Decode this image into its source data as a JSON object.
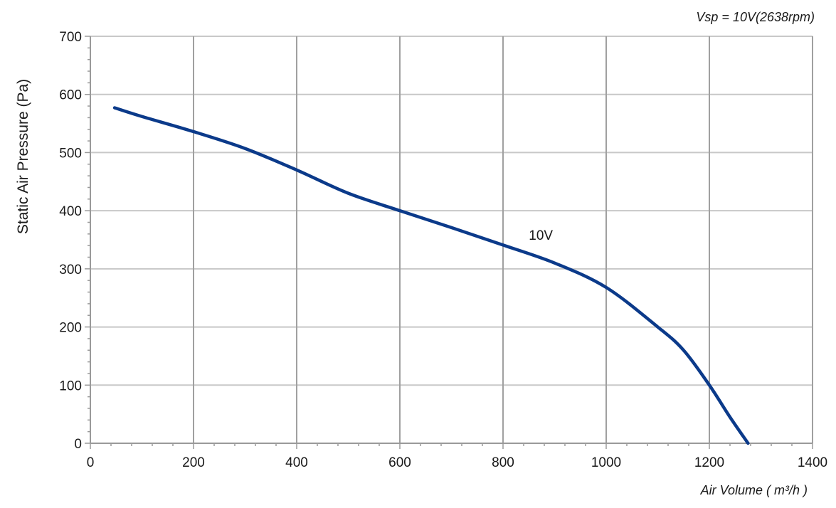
{
  "chart_data": {
    "type": "line",
    "title": "Vsp = 10V(2638rpm)",
    "xlabel": "Air Volume ( m³/h )",
    "ylabel": "Static Air Pressure  (Pa)",
    "xlim": [
      0,
      1400
    ],
    "ylim": [
      0,
      700
    ],
    "x_ticks": [
      0,
      200,
      400,
      600,
      800,
      1000,
      1200,
      1400
    ],
    "y_ticks": [
      0,
      100,
      200,
      300,
      400,
      500,
      600,
      700
    ],
    "grid": true,
    "colors": {
      "line": "#0b3a8a",
      "grid": "#c8c8c8",
      "major_grid": "#a0a0a0"
    },
    "series": [
      {
        "name": "10V",
        "label_at": [
          850,
          350
        ],
        "x": [
          47,
          100,
          200,
          300,
          400,
          500,
          600,
          700,
          800,
          900,
          1000,
          1100,
          1150,
          1200,
          1240,
          1275
        ],
        "y": [
          577,
          562,
          536,
          507,
          470,
          430,
          400,
          371,
          341,
          310,
          268,
          200,
          160,
          100,
          45,
          0
        ]
      }
    ]
  }
}
